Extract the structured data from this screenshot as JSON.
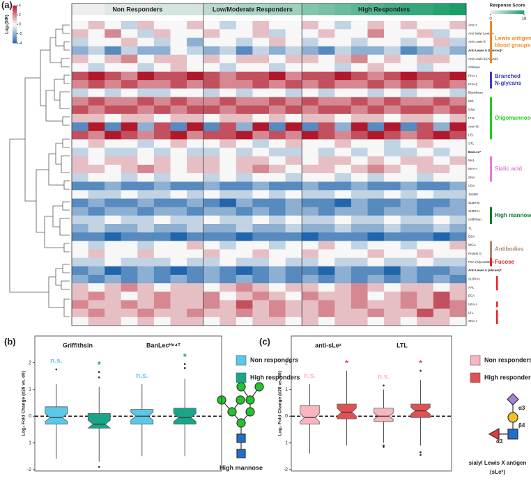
{
  "chart_data": [
    {
      "type": "heatmap",
      "panel": "(a)",
      "group_labels": [
        "Non Responders",
        "Low/Moderate Responders",
        "High Responders"
      ],
      "rows": [
        "Anti H",
        "Anti Sialyl Lewis A",
        "Anti Lewis B",
        "Anti Lewis A (Thermo)*",
        "Anti Lewis B (Abcam)",
        "Calsepa",
        "PHA-L",
        "PHA-E",
        "Blackbean",
        "NPL",
        "GNA",
        "HHL",
        "Anti H3",
        "LEL",
        "STL",
        "BanLec*",
        "MAL",
        "MAA-I",
        "SNA",
        "UDA",
        "Jacalin",
        "SLBR-B",
        "SLBR-H",
        "Griffithsin",
        "TL",
        "DSA",
        "WGA",
        "Protein G",
        "PSA (GlycoMatrix)",
        "Anti Lewis A (Abcam)*",
        "SLBR-N",
        "AAL",
        "ECA",
        "UEA-I",
        "LTL",
        "SNA-I"
      ],
      "matrix": [
        [
          0,
          1,
          0,
          -1,
          1,
          0,
          0,
          1,
          0,
          -1,
          0,
          1,
          0,
          0,
          1,
          0,
          -1,
          0,
          1,
          0,
          1,
          0,
          0,
          1
        ],
        [
          1,
          0,
          2,
          0,
          -1,
          1,
          0,
          0,
          1,
          0,
          0,
          1,
          -1,
          0,
          0,
          1,
          0,
          0,
          2,
          0,
          0,
          1,
          -1,
          0
        ],
        [
          -1,
          0,
          0,
          1,
          0,
          -1,
          0,
          -2,
          0,
          0,
          -1,
          0,
          1,
          0,
          -1,
          0,
          0,
          -1,
          0,
          0,
          -1,
          0,
          1,
          -1
        ],
        [
          -2,
          -1,
          -3,
          -1,
          -2,
          -2,
          0,
          -1,
          -2,
          -1,
          -3,
          -1,
          -2,
          -1,
          -2,
          -3,
          -1,
          -2,
          -2,
          -1,
          -3,
          -2,
          -1,
          -2
        ],
        [
          1,
          0,
          1,
          2,
          0,
          1,
          1,
          0,
          1,
          0,
          1,
          1,
          0,
          1,
          1,
          0,
          1,
          2,
          0,
          1,
          0,
          1,
          1,
          0
        ],
        [
          0,
          -1,
          0,
          0,
          -1,
          0,
          1,
          0,
          0,
          -1,
          0,
          0,
          -1,
          0,
          0,
          0,
          -1,
          0,
          1,
          0,
          0,
          -1,
          0,
          0
        ],
        [
          3,
          4,
          3,
          2,
          4,
          3,
          3,
          4,
          3,
          2,
          3,
          3,
          4,
          2,
          3,
          3,
          4,
          3,
          2,
          3,
          4,
          3,
          3,
          4
        ],
        [
          2,
          3,
          2,
          3,
          2,
          2,
          3,
          2,
          3,
          2,
          2,
          3,
          2,
          3,
          2,
          3,
          2,
          2,
          3,
          2,
          3,
          2,
          3,
          2
        ],
        [
          -1,
          0,
          -1,
          0,
          -1,
          -1,
          0,
          0,
          -1,
          0,
          -1,
          0,
          0,
          -1,
          0,
          -1,
          0,
          0,
          -1,
          0,
          -1,
          0,
          0,
          -1
        ],
        [
          2,
          3,
          2,
          2,
          3,
          2,
          3,
          2,
          2,
          3,
          2,
          2,
          3,
          2,
          3,
          2,
          2,
          3,
          2,
          3,
          2,
          2,
          3,
          2
        ],
        [
          3,
          2,
          3,
          3,
          2,
          3,
          2,
          3,
          3,
          2,
          3,
          3,
          2,
          3,
          2,
          3,
          3,
          2,
          3,
          2,
          3,
          3,
          2,
          3
        ],
        [
          1,
          1,
          0,
          1,
          1,
          0,
          1,
          1,
          0,
          1,
          1,
          0,
          1,
          0,
          1,
          1,
          0,
          1,
          1,
          0,
          1,
          1,
          0,
          1
        ],
        [
          -3,
          4,
          -3,
          4,
          -2,
          3,
          -3,
          4,
          -3,
          3,
          -2,
          4,
          -3,
          4,
          -3,
          3,
          -2,
          4,
          -3,
          4,
          -3,
          3,
          -2,
          4
        ],
        [
          3,
          2,
          4,
          3,
          2,
          3,
          4,
          2,
          3,
          3,
          4,
          2,
          3,
          2,
          4,
          3,
          2,
          3,
          4,
          3,
          2,
          3,
          4,
          3
        ],
        [
          0,
          1,
          0,
          0,
          -1,
          0,
          1,
          0,
          0,
          1,
          0,
          -1,
          0,
          1,
          0,
          0,
          1,
          0,
          0,
          -1,
          0,
          1,
          0,
          0
        ],
        [
          -1,
          0,
          -1,
          -1,
          0,
          -1,
          0,
          -1,
          -1,
          0,
          -1,
          0,
          -1,
          -1,
          0,
          -1,
          0,
          -1,
          0,
          -1,
          -1,
          0,
          -1,
          0
        ],
        [
          1,
          0,
          1,
          1,
          0,
          1,
          0,
          1,
          1,
          0,
          1,
          1,
          0,
          1,
          0,
          1,
          1,
          0,
          1,
          0,
          1,
          1,
          0,
          1
        ],
        [
          1,
          1,
          0,
          1,
          2,
          1,
          0,
          1,
          1,
          0,
          1,
          2,
          1,
          0,
          1,
          1,
          0,
          1,
          2,
          1,
          0,
          1,
          1,
          0
        ],
        [
          -1,
          0,
          0,
          -1,
          0,
          -1,
          0,
          0,
          -1,
          0,
          -1,
          0,
          0,
          -1,
          0,
          0,
          -1,
          0,
          -1,
          0,
          0,
          -1,
          0,
          0
        ],
        [
          -3,
          -3,
          -2,
          -3,
          -3,
          -2,
          -3,
          -3,
          -2,
          -3,
          -3,
          -2,
          -3,
          -3,
          -2,
          -3,
          -3,
          -2,
          -3,
          -3,
          -2,
          -3,
          -3,
          -2
        ],
        [
          0,
          -1,
          -1,
          0,
          -1,
          -1,
          0,
          -1,
          0,
          -1,
          -1,
          0,
          -1,
          0,
          -1,
          -1,
          0,
          -1,
          -1,
          0,
          -1,
          0,
          -1,
          -1
        ],
        [
          -3,
          -2,
          -3,
          -3,
          -2,
          -3,
          -3,
          -2,
          -3,
          -4,
          -2,
          -3,
          -3,
          -2,
          -3,
          -3,
          -4,
          -2,
          -3,
          -3,
          -2,
          -3,
          -3,
          -2
        ],
        [
          -2,
          -3,
          -2,
          -2,
          -3,
          -2,
          -2,
          -3,
          -2,
          -2,
          -3,
          -2,
          -3,
          -2,
          -2,
          -3,
          -2,
          -2,
          -3,
          -2,
          -2,
          -3,
          -2,
          -2
        ],
        [
          -1,
          -1,
          0,
          -1,
          -1,
          0,
          -1,
          -1,
          0,
          -1,
          -1,
          0,
          -1,
          0,
          -1,
          -1,
          0,
          -1,
          -1,
          0,
          -1,
          -1,
          0,
          -1
        ],
        [
          -2,
          -1,
          -2,
          -2,
          -1,
          -2,
          -2,
          -1,
          -2,
          -2,
          -1,
          -2,
          -2,
          -1,
          -2,
          -2,
          -1,
          -2,
          -2,
          -1,
          -2,
          -2,
          -1,
          -2
        ],
        [
          -3,
          -3,
          -4,
          -3,
          -3,
          -3,
          -4,
          -3,
          -3,
          -3,
          -4,
          -3,
          -3,
          -3,
          -4,
          -3,
          -3,
          -3,
          -4,
          -3,
          -3,
          -3,
          -4,
          -3
        ],
        [
          0,
          -1,
          0,
          0,
          -1,
          0,
          0,
          1,
          0,
          -1,
          0,
          0,
          -1,
          0,
          0,
          1,
          0,
          -1,
          0,
          0,
          -1,
          0,
          0,
          1
        ],
        [
          0,
          1,
          0,
          0,
          1,
          0,
          0,
          0,
          1,
          0,
          0,
          1,
          0,
          0,
          1,
          0,
          0,
          0,
          1,
          0,
          0,
          1,
          0,
          0
        ],
        [
          -1,
          -1,
          0,
          -1,
          -1,
          -1,
          0,
          -1,
          -1,
          0,
          -1,
          -1,
          0,
          -1,
          -1,
          0,
          -1,
          -1,
          0,
          -1,
          -1,
          0,
          -1,
          -1
        ],
        [
          -3,
          -2,
          -4,
          -3,
          -2,
          -3,
          -4,
          -3,
          -2,
          -3,
          -4,
          -3,
          -2,
          -3,
          -3,
          -4,
          -2,
          -3,
          -3,
          -4,
          -2,
          -3,
          -3,
          -2
        ],
        [
          -2,
          -3,
          -2,
          -3,
          -2,
          -3,
          -2,
          -3,
          -2,
          -3,
          -2,
          -3,
          -2,
          -3,
          -2,
          -3,
          -2,
          -3,
          -2,
          -3,
          -2,
          -3,
          -2,
          -3
        ],
        [
          1,
          0,
          1,
          2,
          1,
          0,
          1,
          1,
          0,
          1,
          2,
          1,
          0,
          1,
          1,
          0,
          1,
          2,
          1,
          0,
          1,
          1,
          0,
          1
        ],
        [
          1,
          2,
          1,
          0,
          1,
          2,
          1,
          1,
          2,
          0,
          1,
          2,
          1,
          0,
          2,
          1,
          1,
          2,
          0,
          1,
          2,
          1,
          3,
          1
        ],
        [
          2,
          1,
          1,
          2,
          1,
          2,
          1,
          1,
          2,
          1,
          3,
          1,
          2,
          1,
          1,
          2,
          1,
          2,
          1,
          1,
          2,
          1,
          3,
          2
        ],
        [
          1,
          2,
          1,
          1,
          2,
          1,
          1,
          2,
          1,
          1,
          2,
          1,
          2,
          1,
          1,
          2,
          1,
          1,
          2,
          1,
          1,
          3,
          1,
          2
        ],
        [
          0,
          1,
          1,
          0,
          1,
          0,
          1,
          1,
          0,
          1,
          0,
          1,
          1,
          0,
          1,
          0,
          1,
          1,
          0,
          1,
          0,
          1,
          1,
          0
        ]
      ],
      "response_scores": [
        0,
        0,
        1,
        1,
        1,
        2,
        2,
        2,
        4,
        4,
        5,
        5,
        6,
        6,
        8,
        9,
        10,
        11,
        12,
        13,
        14,
        14,
        15,
        16
      ],
      "colorbar": {
        "label": "Log₂(S/R)",
        "lim": [
          -4,
          4
        ],
        "ticks": [
          4,
          2,
          0,
          -2,
          -4
        ]
      },
      "response_colorbar": {
        "label": "Response Score",
        "lim": [
          0,
          16
        ],
        "ticks": [
          0,
          16
        ]
      },
      "row_groups": [
        {
          "label": "Lewis antigens / blood groups",
          "color": "#f08a24"
        },
        {
          "label": "Branched N-glycans",
          "color": "#3b3bbf"
        },
        {
          "label": "Oligomannose",
          "color": "#22cc22"
        },
        {
          "label": "Sialic acid",
          "color": "#e87ad8"
        },
        {
          "label": "High mannose",
          "color": "#0b7a2b"
        },
        {
          "label": "Antibodies",
          "color": "#b08a6e"
        },
        {
          "label": "Fucose",
          "color": "#e8202a"
        }
      ]
    },
    {
      "type": "box",
      "panel": "(b)",
      "ylabel": "Log₂ Fold Change (d28 vs. d0)",
      "categories": [
        "Griffithsin",
        "BanLecᴴ⁸⁴ᵀ"
      ],
      "ylim": [
        -2.05,
        3.0
      ],
      "yticks": [
        2,
        1,
        0,
        {
          "value": -1,
          "label": "1"
        },
        -2
      ],
      "hline": 0,
      "series": [
        {
          "name": "Non responders",
          "color": "#5bc8e8",
          "sig": [
            "n.s.",
            "n.s."
          ],
          "boxes": [
            {
              "whislo": -1.6,
              "q1": -0.3,
              "med": -0.05,
              "q3": 0.35,
              "whishi": 1.2,
              "notch": [
                -0.2,
                0.1
              ],
              "fliers": [
                1.75
              ]
            },
            {
              "whislo": -1.5,
              "q1": -0.3,
              "med": 0,
              "q3": 0.25,
              "whishi": 1.2,
              "notch": [
                -0.15,
                0.15
              ],
              "fliers": []
            }
          ]
        },
        {
          "name": "High responders",
          "color": "#1aa58a",
          "sig": [
            "*",
            "*"
          ],
          "boxes": [
            {
              "whislo": -1.7,
              "q1": -0.45,
              "med": -0.3,
              "q3": 0.1,
              "whishi": 1.1,
              "notch": [
                -0.45,
                -0.15
              ],
              "fliers": [
                1.45,
                1.65,
                -1.9
              ]
            },
            {
              "whislo": -1.5,
              "q1": -0.3,
              "med": -0.05,
              "q3": 0.3,
              "whishi": 1.4,
              "notch": [
                -0.2,
                0.1
              ],
              "fliers": [
                1.8,
                1.95
              ]
            }
          ]
        }
      ]
    },
    {
      "type": "box",
      "panel": "(c)",
      "ylabel": "Log₂ Fold Change (d28 vs. d0)",
      "categories": [
        "anti-sLeˣ",
        "LTL"
      ],
      "ylim": [
        -2.05,
        3.0
      ],
      "yticks": [
        2,
        1,
        0,
        {
          "value": -1,
          "label": "1"
        },
        -2
      ],
      "hline": 0,
      "series": [
        {
          "name": "Non responders",
          "color": "#f7b6c0",
          "sig": [
            "n.s.",
            "n.s."
          ],
          "boxes": [
            {
              "whislo": -1.4,
              "q1": -0.3,
              "med": -0.05,
              "q3": 0.4,
              "whishi": 1.2,
              "notch": [
                -0.2,
                0.1
              ],
              "fliers": []
            },
            {
              "whislo": -1.0,
              "q1": -0.2,
              "med": 0,
              "q3": 0.3,
              "whishi": 1.0,
              "notch": [
                -0.12,
                0.12
              ],
              "fliers": [
                1.15,
                -1.1,
                -1.15
              ]
            }
          ]
        },
        {
          "name": "High responders",
          "color": "#e05252",
          "sig": [
            "*",
            "*"
          ],
          "boxes": [
            {
              "whislo": -1.1,
              "q1": -0.1,
              "med": 0.15,
              "q3": 0.45,
              "whishi": 1.7,
              "notch": [
                0.0,
                0.3
              ],
              "fliers": []
            },
            {
              "whislo": -1.1,
              "q1": -0.05,
              "med": 0.2,
              "q3": 0.45,
              "whishi": 1.35,
              "notch": [
                0.08,
                0.32
              ],
              "fliers": [
                1.7,
                -1.35,
                -1.45
              ]
            }
          ]
        }
      ]
    }
  ],
  "glycans": {
    "high_mannose": "High mannose",
    "slex": [
      "α3",
      "β4",
      "α3"
    ],
    "slex_name": "sialyl Lewis X antigen",
    "slex_abbr": "(sLeˣ)"
  }
}
